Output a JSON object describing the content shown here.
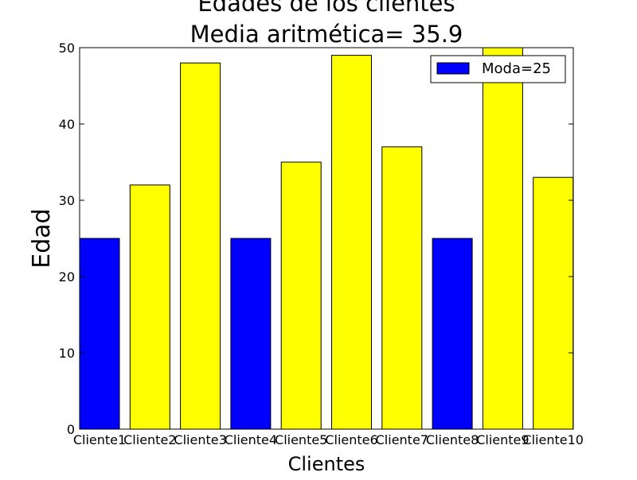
{
  "chart_data": {
    "type": "bar",
    "title_line1": "Edades de los clientes",
    "title_line2": "Media aritmética= 35.9",
    "xlabel": "Clientes",
    "ylabel": "Edad",
    "categories": [
      "Cliente1",
      "Cliente2",
      "Cliente3",
      "Cliente4",
      "Cliente5",
      "Cliente6",
      "Cliente7",
      "Cliente8",
      "Cliente9",
      "Cliente10"
    ],
    "values": [
      25,
      32,
      48,
      25,
      35,
      49,
      37,
      25,
      50,
      33
    ],
    "mode_value": 25,
    "ylim": [
      0,
      50
    ],
    "yticks": [
      0,
      10,
      20,
      30,
      40,
      50
    ],
    "legend": {
      "label": "Moda=25",
      "placement": "top-right"
    },
    "colors": {
      "mode": "#0000ff",
      "other": "#ffff00",
      "edge": "#000000"
    },
    "grid": false
  }
}
